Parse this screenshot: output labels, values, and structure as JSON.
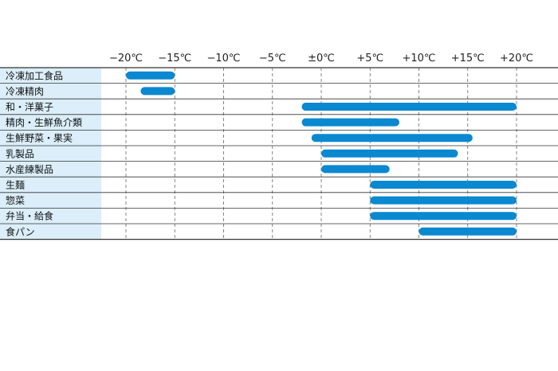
{
  "chart_data": {
    "type": "bar",
    "orientation": "horizontal-range",
    "title": "",
    "xlabel": "",
    "ylabel": "",
    "x_ticks": [
      "−20℃",
      "−15℃",
      "−10℃",
      "−5℃",
      "±0℃",
      "+5℃",
      "+10℃",
      "+15℃",
      "+20℃"
    ],
    "x_tick_values": [
      -20,
      -15,
      -10,
      -5,
      0,
      5,
      10,
      15,
      20
    ],
    "xlim": [
      -20,
      20
    ],
    "grid": true,
    "categories": [
      "冷凍加工食品",
      "冷凍精肉",
      "和・洋菓子",
      "精肉・生鮮魚介類",
      "生鮮野菜・果実",
      "乳製品",
      "水産練製品",
      "生麺",
      "惣菜",
      "弁当・給食",
      "食パン"
    ],
    "ranges": [
      [
        -20,
        -15
      ],
      [
        -18.5,
        -15
      ],
      [
        -2,
        20
      ],
      [
        -2,
        8
      ],
      [
        -1,
        15.5
      ],
      [
        0,
        14
      ],
      [
        0,
        7
      ],
      [
        5,
        20
      ],
      [
        5,
        20
      ],
      [
        5,
        20
      ],
      [
        10,
        20
      ]
    ],
    "colors": {
      "bar": "#0a88d0",
      "label_bg": "#dbeef9",
      "line": "#333333",
      "grid": "#666666"
    }
  }
}
